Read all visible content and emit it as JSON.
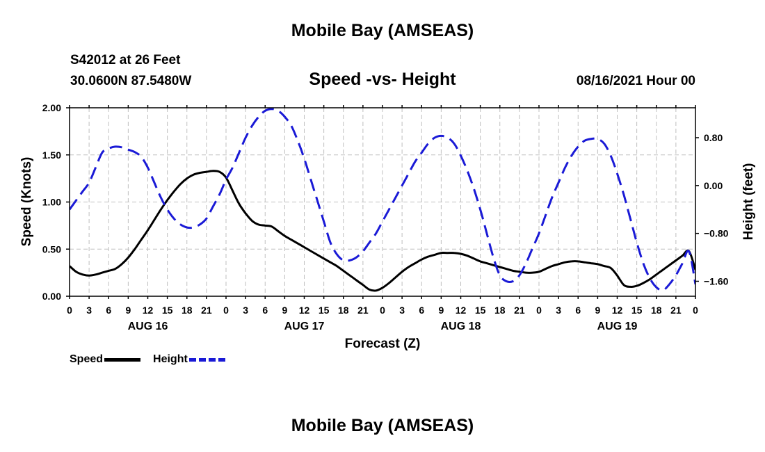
{
  "header": {
    "title": "Mobile Bay (AMSEAS)",
    "station": "S42012 at 26 Feet",
    "coords": "30.0600N  87.5480W",
    "chart_title": "Speed -vs- Height",
    "datetime": "08/16/2021 Hour 00"
  },
  "footer": {
    "title": "Mobile Bay (AMSEAS)"
  },
  "legend": {
    "speed_label": "Speed",
    "height_label": "Height"
  },
  "colors": {
    "speed": "#000000",
    "height": "#1a1ad6",
    "grid": "#bfbfbf"
  },
  "chart_data": {
    "type": "line",
    "title": "Speed -vs- Height",
    "xlabel": "Forecast (Z)",
    "ylabel_left": "Speed (Knots)",
    "ylabel_right": "Height (feet)",
    "x_unit": "forecast hour",
    "xlim": [
      0,
      96
    ],
    "ylim_left": [
      0,
      2
    ],
    "ylim_right": [
      -1.85,
      1.3
    ],
    "x_ticks": [
      0,
      3,
      6,
      9,
      12,
      15,
      18,
      21,
      24,
      27,
      30,
      33,
      36,
      39,
      42,
      45,
      48,
      51,
      54,
      57,
      60,
      63,
      66,
      69,
      72,
      75,
      78,
      81,
      84,
      87,
      90,
      93,
      96
    ],
    "x_tick_labels": [
      "0",
      "3",
      "6",
      "9",
      "12",
      "15",
      "18",
      "21",
      "0",
      "3",
      "6",
      "9",
      "12",
      "15",
      "18",
      "21",
      "0",
      "3",
      "6",
      "9",
      "12",
      "15",
      "18",
      "21",
      "0",
      "3",
      "6",
      "9",
      "12",
      "15",
      "18",
      "21",
      "0"
    ],
    "day_labels": [
      {
        "x": 12,
        "label": "AUG 16"
      },
      {
        "x": 36,
        "label": "AUG 17"
      },
      {
        "x": 60,
        "label": "AUG 18"
      },
      {
        "x": 84,
        "label": "AUG 19"
      }
    ],
    "y_ticks_left": [
      0,
      0.5,
      1.0,
      1.5,
      2.0
    ],
    "y_tick_labels_left": [
      "0.00",
      "0.50",
      "1.00",
      "1.50",
      "2.00"
    ],
    "y_ticks_right": [
      -1.6,
      -0.8,
      0.0,
      0.8
    ],
    "y_tick_labels_right": [
      "−1.60",
      "−0.80",
      "0.00",
      "0.80"
    ],
    "grid": true,
    "legend_position": "bottom-left",
    "series": [
      {
        "name": "Speed",
        "axis": "left",
        "style": "solid",
        "x": [
          0,
          1,
          2,
          3,
          4,
          5,
          6,
          7,
          8,
          9,
          10,
          11,
          12,
          13,
          14,
          15,
          16,
          17,
          18,
          19,
          20,
          21,
          22,
          23,
          24,
          25,
          26,
          27,
          28,
          29,
          30,
          31,
          32,
          33,
          34,
          35,
          36,
          37,
          38,
          39,
          40,
          41,
          42,
          43,
          44,
          45,
          46,
          47,
          48,
          49,
          50,
          51,
          52,
          53,
          54,
          55,
          56,
          57,
          58,
          59,
          60,
          61,
          62,
          63,
          64,
          65,
          66,
          67,
          68,
          69,
          70,
          71,
          72,
          73,
          74,
          75,
          76,
          77,
          78,
          79,
          80,
          81,
          82,
          83,
          84,
          85,
          86,
          87,
          88,
          89,
          90,
          91,
          92,
          93,
          94,
          95,
          96
        ],
        "values": [
          0.32,
          0.26,
          0.23,
          0.22,
          0.23,
          0.25,
          0.27,
          0.29,
          0.34,
          0.41,
          0.5,
          0.6,
          0.7,
          0.81,
          0.92,
          1.02,
          1.11,
          1.19,
          1.25,
          1.29,
          1.31,
          1.32,
          1.33,
          1.32,
          1.26,
          1.12,
          0.98,
          0.88,
          0.8,
          0.76,
          0.75,
          0.74,
          0.69,
          0.64,
          0.6,
          0.56,
          0.52,
          0.48,
          0.44,
          0.4,
          0.36,
          0.32,
          0.27,
          0.22,
          0.17,
          0.12,
          0.07,
          0.06,
          0.09,
          0.14,
          0.2,
          0.26,
          0.31,
          0.35,
          0.39,
          0.42,
          0.44,
          0.46,
          0.46,
          0.46,
          0.45,
          0.43,
          0.4,
          0.37,
          0.35,
          0.33,
          0.31,
          0.29,
          0.27,
          0.26,
          0.25,
          0.25,
          0.26,
          0.29,
          0.32,
          0.34,
          0.36,
          0.37,
          0.37,
          0.36,
          0.35,
          0.34,
          0.32,
          0.3,
          0.22,
          0.12,
          0.1,
          0.11,
          0.14,
          0.18,
          0.23,
          0.28,
          0.33,
          0.38,
          0.43,
          0.48,
          0.28
        ]
      },
      {
        "name": "Height",
        "axis": "right",
        "style": "dashed",
        "x": [
          0,
          1,
          2,
          3,
          4,
          5,
          6,
          7,
          8,
          9,
          10,
          11,
          12,
          13,
          14,
          15,
          16,
          17,
          18,
          19,
          20,
          21,
          22,
          23,
          24,
          25,
          26,
          27,
          28,
          29,
          30,
          31,
          32,
          33,
          34,
          35,
          36,
          37,
          38,
          39,
          40,
          41,
          42,
          43,
          44,
          45,
          46,
          47,
          48,
          49,
          50,
          51,
          52,
          53,
          54,
          55,
          56,
          57,
          58,
          59,
          60,
          61,
          62,
          63,
          64,
          65,
          66,
          67,
          68,
          69,
          70,
          71,
          72,
          73,
          74,
          75,
          76,
          77,
          78,
          79,
          80,
          81,
          82,
          83,
          84,
          85,
          86,
          87,
          88,
          89,
          90,
          91,
          92,
          93,
          94,
          95,
          96
        ],
        "values": [
          -0.4,
          -0.25,
          -0.1,
          0.05,
          0.3,
          0.55,
          0.62,
          0.65,
          0.64,
          0.6,
          0.56,
          0.48,
          0.3,
          0.05,
          -0.2,
          -0.4,
          -0.55,
          -0.65,
          -0.7,
          -0.7,
          -0.65,
          -0.55,
          -0.35,
          -0.15,
          0.1,
          0.3,
          0.55,
          0.8,
          1.0,
          1.15,
          1.25,
          1.28,
          1.25,
          1.15,
          1.0,
          0.75,
          0.45,
          0.1,
          -0.25,
          -0.6,
          -0.95,
          -1.15,
          -1.25,
          -1.25,
          -1.2,
          -1.1,
          -0.95,
          -0.8,
          -0.6,
          -0.4,
          -0.2,
          0.0,
          0.2,
          0.4,
          0.55,
          0.7,
          0.8,
          0.83,
          0.8,
          0.7,
          0.5,
          0.25,
          -0.05,
          -0.4,
          -0.8,
          -1.2,
          -1.5,
          -1.6,
          -1.6,
          -1.5,
          -1.3,
          -1.05,
          -0.8,
          -0.5,
          -0.2,
          0.05,
          0.3,
          0.5,
          0.65,
          0.75,
          0.78,
          0.78,
          0.7,
          0.5,
          0.2,
          -0.15,
          -0.55,
          -0.95,
          -1.3,
          -1.55,
          -1.7,
          -1.75,
          -1.65,
          -1.5,
          -1.3,
          -1.1,
          -1.65
        ]
      }
    ]
  }
}
